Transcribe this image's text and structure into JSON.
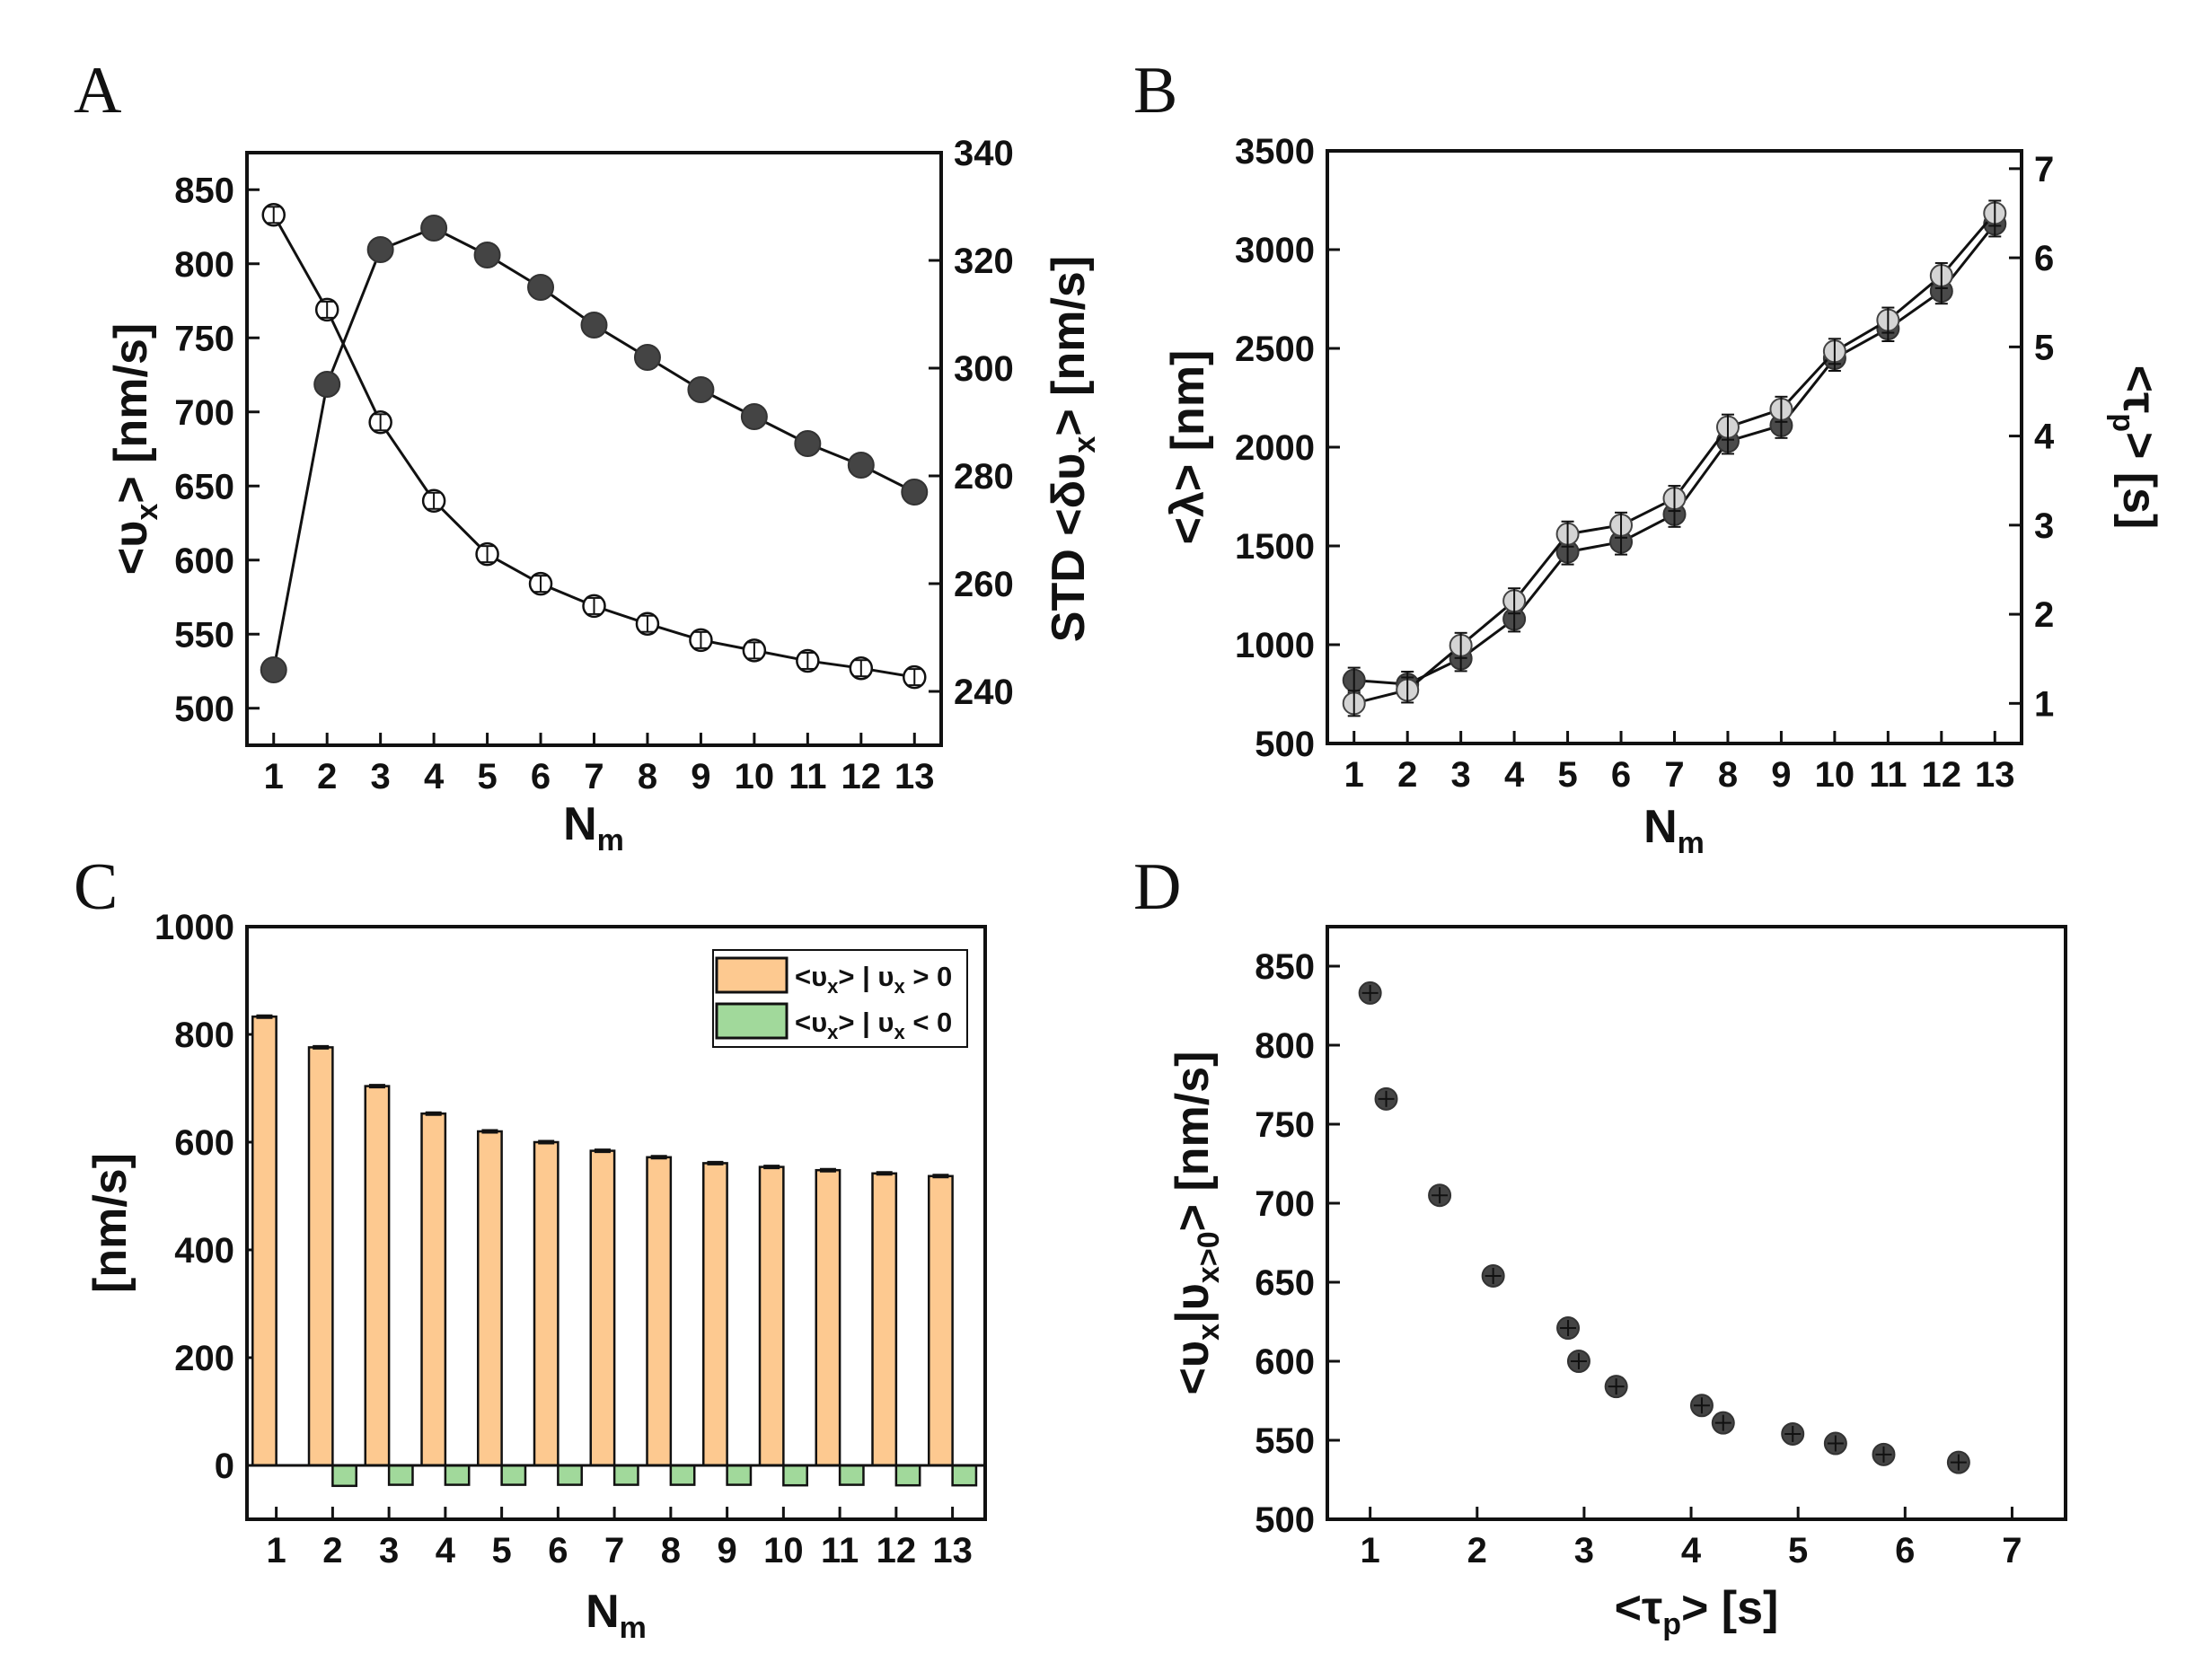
{
  "chart_data": [
    {
      "panel": "A",
      "type": "scatter",
      "x": [
        1,
        2,
        3,
        4,
        5,
        6,
        7,
        8,
        9,
        10,
        11,
        12,
        13
      ],
      "xlim": [
        0.5,
        13.5
      ],
      "y_left": {
        "values": [
          833,
          769,
          693,
          640,
          604,
          584,
          569,
          557,
          546,
          539,
          532,
          527,
          521
        ],
        "ylim": [
          475,
          875
        ],
        "ticks": [
          500,
          550,
          600,
          650,
          700,
          750,
          800,
          850
        ],
        "marker": "open-circle"
      },
      "y_right": {
        "values": [
          244,
          297,
          322,
          326,
          321,
          315,
          308,
          302,
          296,
          291,
          286,
          282,
          277
        ],
        "ylim": [
          230,
          340
        ],
        "ticks": [
          240,
          260,
          280,
          300,
          320,
          340
        ],
        "marker": "filled-circle"
      }
    },
    {
      "panel": "B",
      "type": "line",
      "x": [
        1,
        2,
        3,
        4,
        5,
        6,
        7,
        8,
        9,
        10,
        11,
        12,
        13
      ],
      "xlim": [
        0.5,
        13.5
      ],
      "y_left": {
        "values": [
          820,
          800,
          930,
          1130,
          1470,
          1520,
          1660,
          2030,
          2110,
          2450,
          2600,
          2790,
          3130
        ],
        "ylim": [
          500,
          3500
        ],
        "ticks": [
          500,
          1000,
          1500,
          2000,
          2500,
          3000,
          3500
        ],
        "marker": "dark-circle"
      },
      "y_right": {
        "values": [
          1.0,
          1.15,
          1.65,
          2.15,
          2.9,
          3.0,
          3.3,
          4.1,
          4.3,
          4.95,
          5.3,
          5.8,
          6.5
        ],
        "ylim": [
          0.55,
          7.2
        ],
        "ticks": [
          1,
          2,
          3,
          4,
          5,
          6,
          7
        ],
        "marker": "light-circle"
      }
    },
    {
      "panel": "C",
      "type": "bar",
      "categories": [
        "1",
        "2",
        "3",
        "4",
        "5",
        "6",
        "7",
        "8",
        "9",
        "10",
        "11",
        "12",
        "13"
      ],
      "ylim": [
        -100,
        1000
      ],
      "yticks": [
        0,
        200,
        400,
        600,
        800,
        1000
      ],
      "series": [
        {
          "values": [
            833,
            776,
            704,
            653,
            620,
            600,
            584,
            572,
            561,
            554,
            548,
            542,
            537
          ],
          "color": "#fdc990"
        },
        {
          "values": [
            0,
            -38,
            -36,
            -36,
            -36,
            -36,
            -36,
            -36,
            -36,
            -37,
            -36,
            -37,
            -37
          ],
          "color": "#a1d99b"
        }
      ]
    },
    {
      "panel": "D",
      "type": "scatter",
      "x": [
        1.0,
        1.15,
        1.65,
        2.15,
        2.85,
        2.95,
        3.3,
        4.1,
        4.3,
        4.95,
        5.35,
        5.8,
        6.5
      ],
      "y": [
        833,
        766,
        705,
        654,
        621,
        600,
        584,
        572,
        561,
        554,
        548,
        541,
        536
      ],
      "xlim": [
        0.6,
        7.5
      ],
      "ylim": [
        500,
        875
      ],
      "xticks": [
        1,
        2,
        3,
        4,
        5,
        6,
        7
      ],
      "yticks": [
        500,
        550,
        600,
        650,
        700,
        750,
        800,
        850
      ]
    }
  ],
  "labels": {
    "A": "A",
    "B": "B",
    "C": "C",
    "D": "D",
    "nm_main": "N",
    "nm_sub": "m",
    "a_ylabel_main": "<υ",
    "a_ylabel_sub": "x",
    "a_ylabel_rest": "> [nm/s]",
    "a_y2label_main": "STD <δυ",
    "a_y2label_sub": "x",
    "a_y2label_rest": "> [nm/s]",
    "b_ylabel": "<λ> [nm]",
    "b_y2label_main": "<τ",
    "b_y2label_sub": "p",
    "b_y2label_rest": "> [s]",
    "c_ylabel": "[nm/s]",
    "legend_pos_a": "<υ",
    "legend_pos_b": "x",
    "legend_pos_c": "> | υ",
    "legend_pos_d": "x",
    "legend_pos_e": " > 0",
    "legend_neg_a": "<υ",
    "legend_neg_b": "x",
    "legend_neg_c": "> | υ",
    "legend_neg_d": "x",
    "legend_neg_e": " < 0",
    "d_ylabel_a": "<υ",
    "d_ylabel_b": "x",
    "d_ylabel_c": "|υ",
    "d_ylabel_d": "x>0",
    "d_ylabel_e": "> [nm/s]",
    "d_xlabel_main": "<τ",
    "d_xlabel_sub": "p",
    "d_xlabel_rest": "> [s]"
  }
}
